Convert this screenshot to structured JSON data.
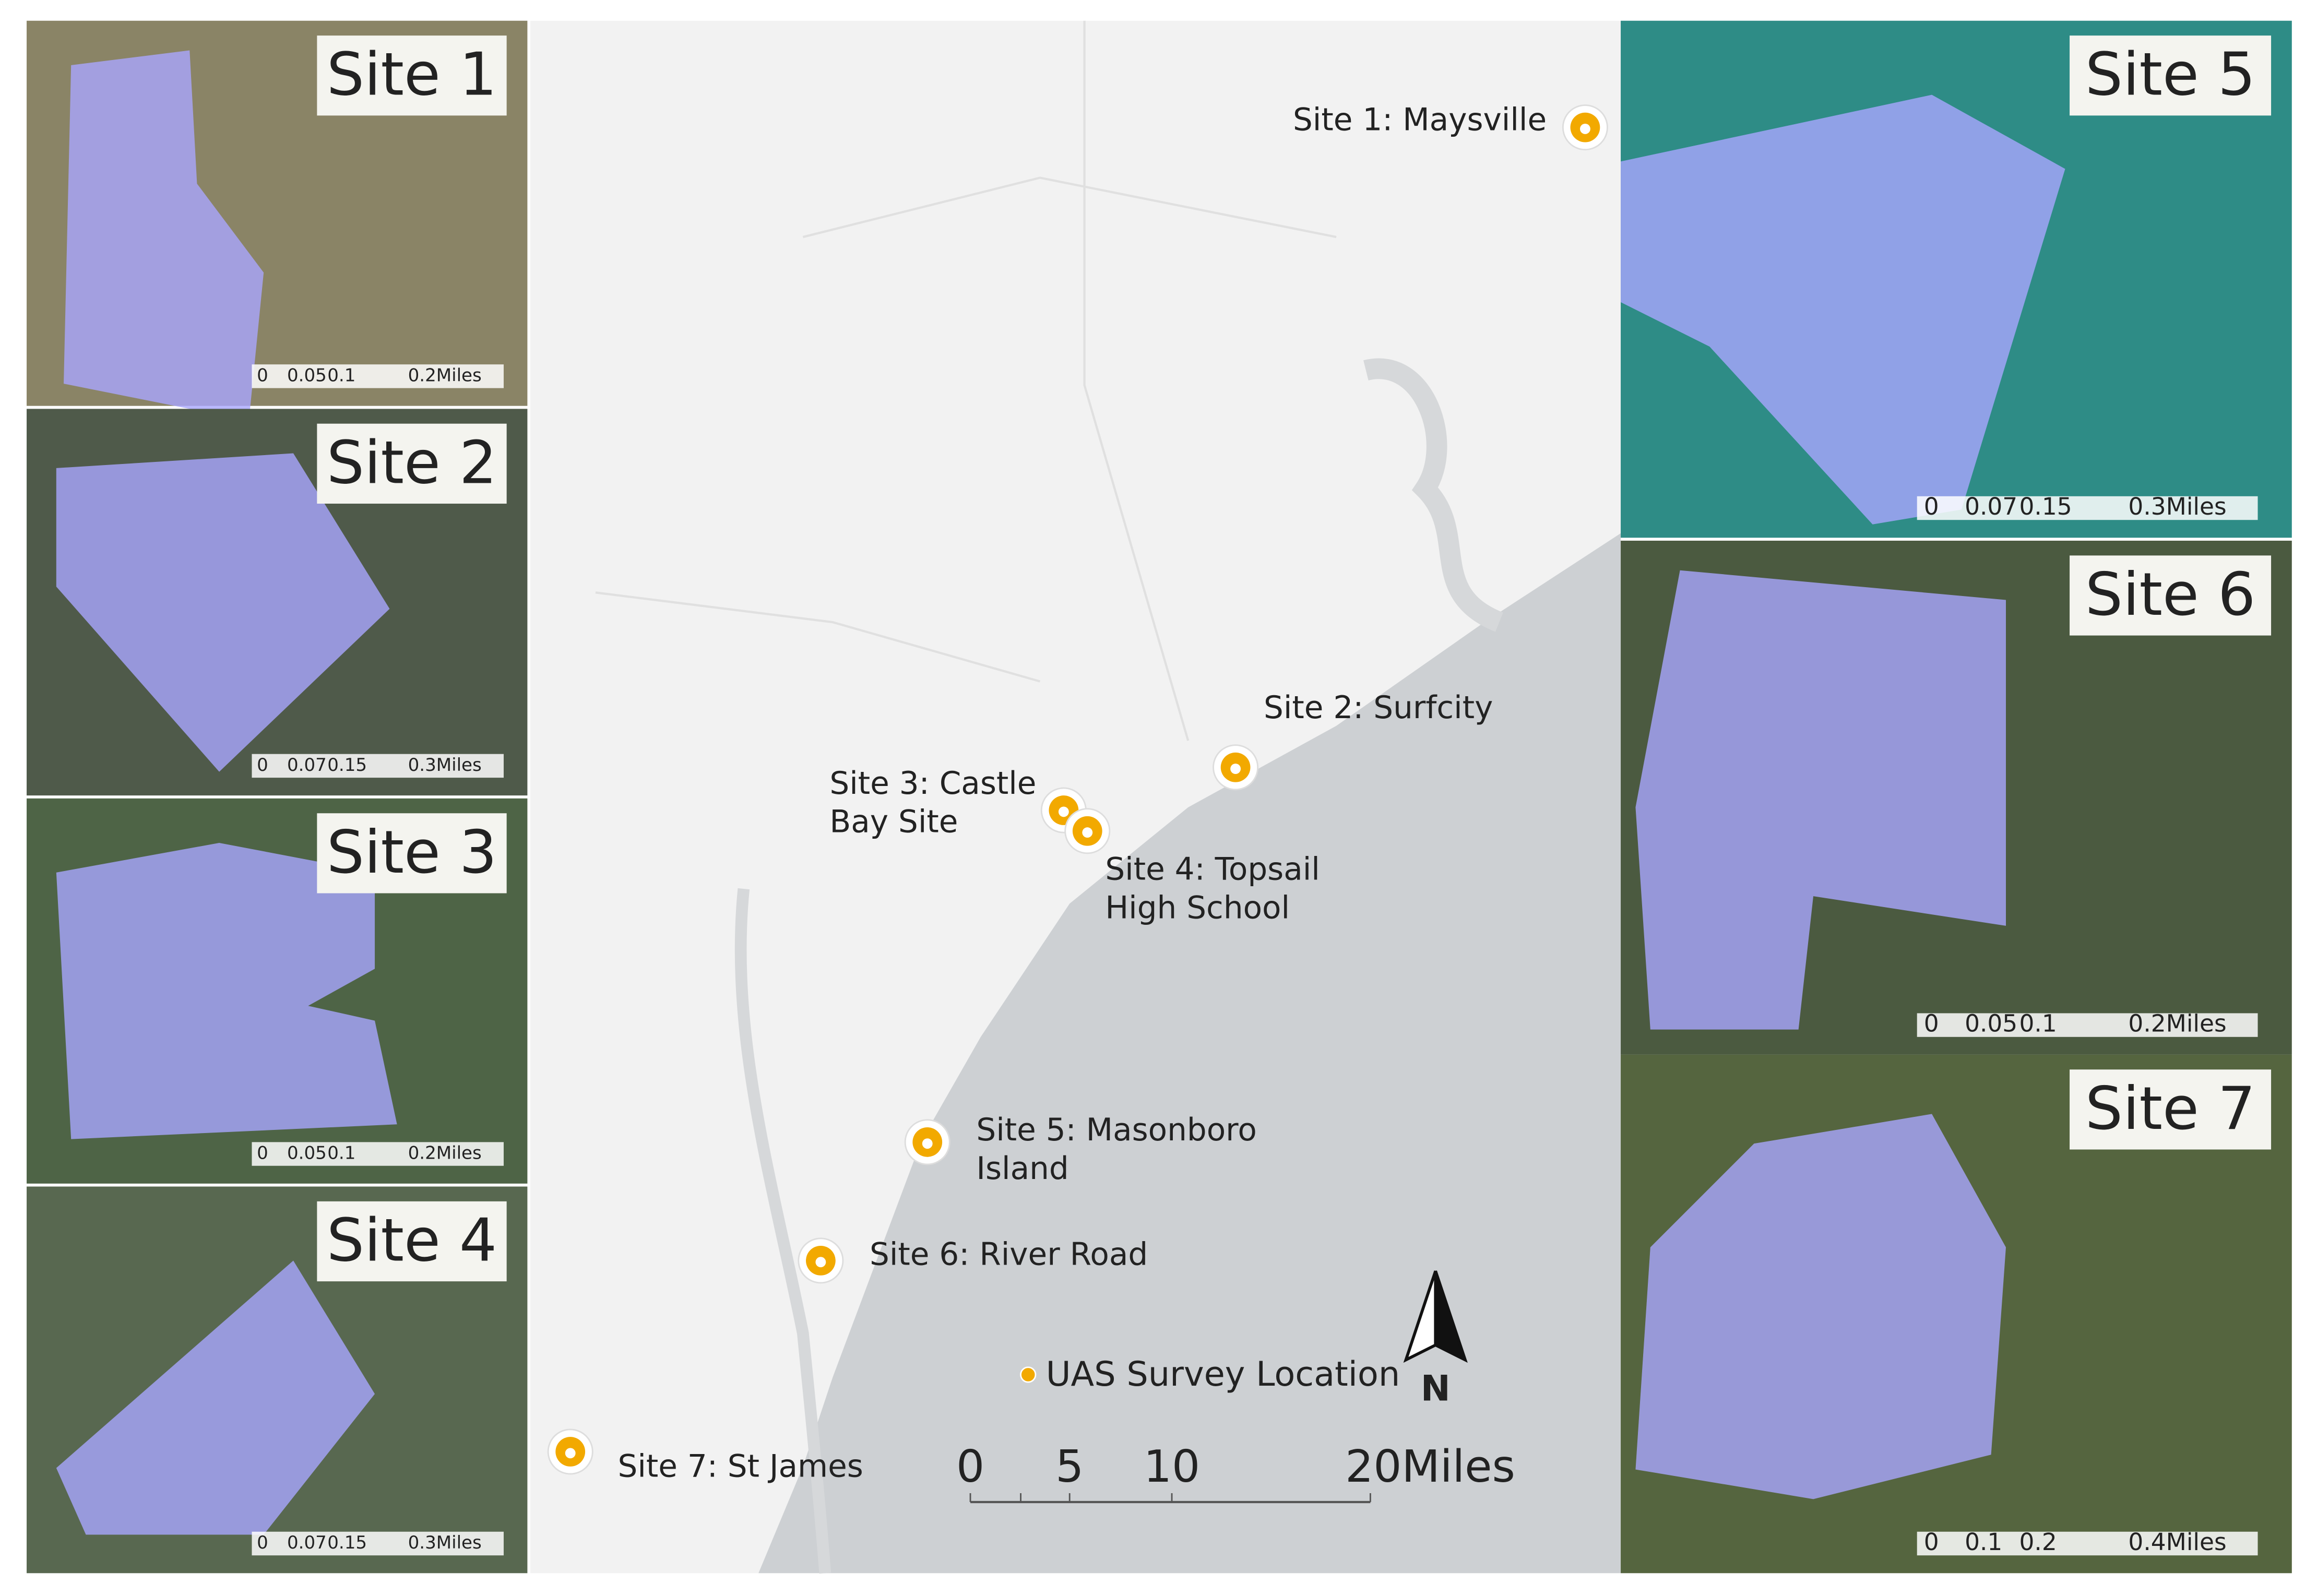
{
  "insets": [
    {
      "label": "Site 1",
      "scale_labels": [
        "0",
        "0.05",
        "0.1",
        "0.2Miles"
      ]
    },
    {
      "label": "Site 2",
      "scale_labels": [
        "0",
        "0.07",
        "0.15",
        "0.3Miles"
      ]
    },
    {
      "label": "Site 3",
      "scale_labels": [
        "0",
        "0.05",
        "0.1",
        "0.2Miles"
      ]
    },
    {
      "label": "Site 4",
      "scale_labels": [
        "0",
        "0.07",
        "0.15",
        "0.3Miles"
      ]
    },
    {
      "label": "Site 5",
      "scale_labels": [
        "0",
        "0.07",
        "0.15",
        "0.3Miles"
      ]
    },
    {
      "label": "Site 6",
      "scale_labels": [
        "0",
        "0.05",
        "0.1",
        "0.2Miles"
      ]
    },
    {
      "label": "Site 7",
      "scale_labels": [
        "0",
        "0.1",
        "0.2",
        "0.4Miles"
      ]
    }
  ],
  "map": {
    "sites": [
      {
        "lines": [
          "Site 1: Maysville"
        ]
      },
      {
        "lines": [
          "Site 2: Surfcity"
        ]
      },
      {
        "lines": [
          "Site 3: Castle",
          "Bay Site"
        ]
      },
      {
        "lines": [
          "Site 4: Topsail",
          "High School"
        ]
      },
      {
        "lines": [
          "Site 5: Masonboro",
          "Island"
        ]
      },
      {
        "lines": [
          "Site 6: River Road"
        ]
      },
      {
        "lines": [
          "Site 7: St James"
        ]
      }
    ],
    "legend": "UAS Survey Location",
    "scale_labels": [
      "0",
      "5",
      "10",
      "20Miles"
    ],
    "north": "N"
  }
}
